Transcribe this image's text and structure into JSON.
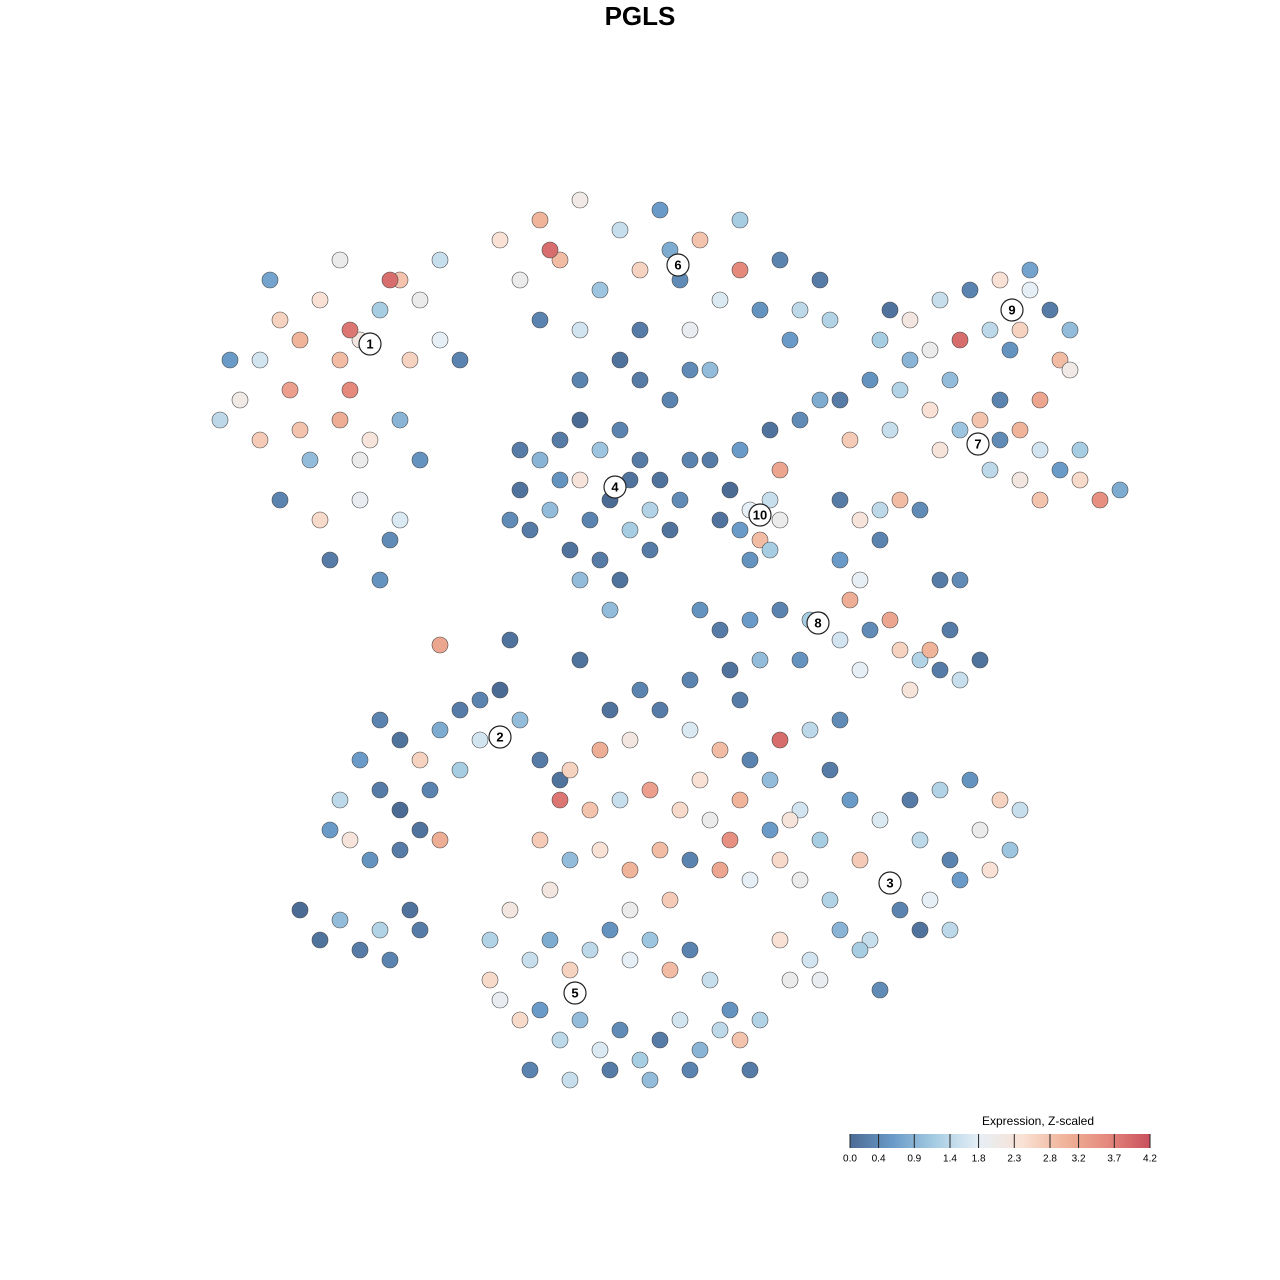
{
  "chart_data": {
    "type": "scatter",
    "title": "PGLS",
    "colorbar_title": "Expression, Z-scaled",
    "clim": [
      0,
      4.2
    ],
    "colorscale": [
      "#4b6b95",
      "#6a9bc8",
      "#a7cde3",
      "#e6eff6",
      "#f9e2d5",
      "#f0b49a",
      "#e5897d",
      "#c9505d"
    ],
    "cticks": [
      {
        "value": 0,
        "label": "0.0"
      },
      0.4,
      0.9,
      1.4,
      1.8,
      2.3,
      2.8,
      3.2,
      3.7,
      4.2
    ],
    "x": [
      -40,
      -38,
      -36,
      -34,
      -32,
      -30,
      -28,
      -26,
      -24,
      -22,
      -20,
      -30,
      -27,
      -33,
      -36,
      -32,
      -28,
      -25,
      -31,
      -26,
      -38,
      -41,
      -35,
      -29,
      -23,
      -20,
      -18,
      -24,
      -42,
      -37,
      -30,
      -34,
      -28,
      -22,
      -24,
      -25,
      -29,
      -14,
      -10,
      -6,
      -2,
      2,
      6,
      10,
      14,
      18,
      -12,
      -8,
      -4,
      0,
      4,
      8,
      12,
      16,
      -10,
      -6,
      0,
      5,
      10,
      -9,
      3,
      15,
      -2,
      7,
      19,
      -12,
      -10,
      -8,
      -6,
      -4,
      -2,
      0,
      2,
      4,
      -11,
      -9,
      -7,
      -5,
      -3,
      -1,
      1,
      3,
      -8,
      -4,
      -6,
      -2,
      5,
      -13,
      -6,
      -1,
      1,
      -12,
      7,
      10,
      13,
      16,
      14,
      9,
      18,
      3,
      0,
      -6,
      5,
      11,
      13,
      14,
      12,
      10,
      13,
      8,
      11,
      24,
      27,
      30,
      33,
      36,
      39,
      41,
      43,
      38,
      35,
      32,
      29,
      42,
      39,
      25,
      37,
      43,
      40,
      20,
      23,
      26,
      29,
      32,
      34,
      36,
      38,
      40,
      42,
      44,
      46,
      48,
      38,
      35,
      30,
      25,
      21,
      27,
      31,
      40,
      44,
      36,
      20,
      22,
      24,
      20,
      22,
      21,
      24,
      18,
      26,
      28,
      30,
      32,
      8,
      11,
      14,
      17,
      20,
      23,
      26,
      28,
      30,
      32,
      34,
      27,
      29,
      22,
      16,
      9,
      5,
      12,
      31,
      25,
      -20,
      -13,
      -3,
      6,
      -6,
      -30,
      -28,
      -26,
      -24,
      -22,
      -20,
      -18,
      -16,
      -14,
      -12,
      -10,
      -8,
      -26,
      -24,
      -22,
      -29,
      -27,
      -24,
      -20,
      -21,
      -18,
      -31,
      -16,
      -34,
      -32,
      -30,
      -28,
      -26,
      -23,
      -25,
      -22,
      -7,
      -4,
      -1,
      2,
      5,
      8,
      11,
      14,
      17,
      20,
      -8,
      -5,
      -2,
      1,
      4,
      7,
      10,
      13,
      16,
      -10,
      -7,
      -4,
      -1,
      2,
      5,
      8,
      11,
      14,
      -9,
      3,
      9,
      6,
      13,
      19,
      -3,
      0,
      10,
      15,
      18,
      21,
      24,
      27,
      30,
      33,
      36,
      38,
      16,
      19,
      22,
      25,
      28,
      31,
      34,
      37,
      14,
      17,
      20,
      23,
      26,
      29,
      32,
      35,
      15,
      18,
      22,
      28,
      24,
      31,
      -15,
      -13,
      -11,
      -9,
      -7,
      -5,
      -3,
      -1,
      1,
      3,
      5,
      7,
      -14,
      -12,
      -10,
      -8,
      -6,
      -4,
      -2,
      0,
      2,
      4,
      6,
      8,
      10,
      12,
      -11,
      -7,
      -3,
      1,
      5,
      9,
      -15,
      -1,
      11
    ],
    "y": [
      24,
      28,
      32,
      30,
      34,
      28,
      30,
      33,
      36,
      34,
      38,
      22,
      20,
      18,
      14,
      12,
      14,
      10,
      8,
      6,
      20,
      28,
      25,
      25,
      28,
      30,
      28,
      22,
      22,
      36,
      38,
      21,
      18,
      18,
      12,
      36,
      31,
      40,
      42,
      44,
      41,
      43,
      40,
      42,
      38,
      36,
      36,
      38,
      35,
      37,
      36,
      34,
      33,
      33,
      32,
      31,
      31,
      31,
      37,
      39,
      39,
      30,
      28,
      27,
      32,
      15,
      18,
      20,
      22,
      19,
      21,
      18,
      16,
      14,
      11,
      13,
      9,
      12,
      14,
      11,
      9,
      11,
      16,
      8,
      6,
      6,
      18,
      12,
      16,
      16,
      13,
      19,
      18,
      19,
      21,
      22,
      17,
      15,
      24,
      24,
      26,
      26,
      27,
      13,
      14,
      12,
      10,
      11,
      9,
      12,
      8,
      30,
      32,
      34,
      35,
      36,
      35,
      33,
      31,
      31,
      31,
      30,
      29,
      28,
      37,
      33,
      29,
      27,
      24,
      24,
      26,
      25,
      23,
      21,
      22,
      20,
      21,
      19,
      17,
      16,
      14,
      15,
      16,
      17,
      19,
      21,
      20,
      28,
      26,
      14,
      19,
      24,
      14,
      12,
      13,
      8,
      6,
      4,
      10,
      2,
      14,
      13,
      6,
      6,
      1,
      2,
      3,
      2,
      0,
      1,
      -1,
      -2,
      -3,
      -4,
      -2,
      -5,
      -1,
      -3,
      -2,
      -3,
      -4,
      -2,
      1,
      2,
      -0.5,
      0,
      3,
      3,
      -2,
      -16,
      -12,
      -8,
      -10,
      -12,
      -9,
      -7,
      -6,
      -5,
      -8,
      -12,
      -14,
      -15,
      -17,
      -19,
      -20,
      -22,
      -21,
      -20,
      -15,
      -13,
      -19,
      -10,
      -27,
      -30,
      -28,
      -31,
      -29,
      -27,
      -32,
      -29,
      -13,
      -11,
      -10,
      -7,
      -9,
      -11,
      -12,
      -10,
      -9,
      -8,
      -16,
      -17,
      -16,
      -15,
      -17,
      -18,
      -16,
      -19,
      -17,
      -20,
      -22,
      -21,
      -23,
      -21,
      -22,
      -23,
      -24,
      -22,
      -25,
      -26,
      -20,
      -14,
      -14,
      -13,
      -7,
      -5,
      -6,
      -18,
      -20,
      -16,
      -18,
      -16,
      -15,
      -14,
      -16,
      -17,
      -24,
      -26,
      -22,
      -24,
      -20,
      -22,
      -19,
      -21,
      -30,
      -32,
      -29,
      -30,
      -27,
      -26,
      -24,
      -23,
      -34,
      -34,
      -31,
      -29,
      -35,
      -29,
      -30,
      -27,
      -32,
      -30,
      -33,
      -31,
      -29,
      -32,
      -30,
      -33,
      -31,
      -34,
      -36,
      -38,
      -37,
      -40,
      -38,
      -41,
      -39,
      -42,
      -40,
      -38,
      -41,
      -39,
      -40,
      -38,
      -43,
      -44,
      -43,
      -44,
      -43,
      -37,
      -34,
      -27,
      -43
    ],
    "values": [
      2.1,
      1.6,
      2.6,
      3.0,
      2.4,
      2.9,
      2.2,
      1.2,
      2.8,
      2.0,
      1.5,
      3.1,
      2.3,
      1.0,
      0.3,
      2.5,
      1.9,
      0.4,
      0.2,
      0.5,
      2.7,
      0.6,
      3.3,
      3.6,
      2.6,
      1.8,
      0.3,
      0.9,
      1.4,
      0.7,
      2.0,
      2.8,
      2.0,
      0.5,
      1.7,
      3.9,
      3.8,
      2.4,
      3.0,
      2.1,
      1.5,
      0.6,
      2.8,
      1.2,
      0.3,
      0.2,
      2.0,
      2.9,
      1.1,
      2.6,
      0.4,
      1.7,
      0.5,
      1.4,
      0.3,
      1.6,
      0.2,
      1.9,
      3.6,
      3.9,
      0.8,
      0.6,
      0.1,
      1.0,
      1.3,
      0.1,
      0.9,
      0.2,
      0.0,
      1.1,
      0.3,
      0.2,
      0.1,
      0.4,
      0.2,
      1.0,
      0.1,
      0.3,
      0.0,
      1.2,
      0.2,
      0.1,
      0.5,
      0.2,
      1.0,
      0.1,
      0.3,
      0.4,
      2.3,
      0.1,
      1.3,
      0.2,
      0.2,
      0.6,
      0.1,
      0.4,
      3.2,
      0.0,
      0.8,
      0.3,
      0.2,
      0.3,
      0.4,
      1.8,
      1.5,
      2.0,
      2.9,
      0.6,
      1.2,
      0.1,
      0.5,
      1.2,
      2.2,
      1.5,
      0.3,
      2.4,
      1.8,
      0.2,
      1.0,
      2.6,
      1.4,
      3.9,
      2.0,
      2.9,
      0.7,
      0.1,
      0.5,
      2.1,
      3.2,
      0.2,
      0.5,
      1.3,
      2.4,
      1.1,
      2.8,
      0.4,
      3.0,
      1.6,
      0.6,
      2.5,
      3.5,
      0.8,
      2.2,
      1.4,
      2.3,
      1.5,
      2.7,
      0.9,
      1.0,
      2.8,
      1.2,
      0.3,
      0.2,
      2.3,
      1.4,
      0.6,
      1.8,
      3.1,
      0.3,
      0.1,
      2.9,
      0.4,
      0.2,
      0.4,
      0.2,
      0.6,
      0.3,
      1.2,
      1.6,
      0.4,
      2.6,
      1.3,
      0.2,
      1.5,
      0.1,
      2.3,
      3.0,
      1.8,
      0.5,
      0.1,
      0.3,
      1.0,
      0.2,
      3.2,
      3.2,
      0.1,
      1.0,
      0.5,
      0.1,
      1.4,
      0.6,
      0.3,
      0.1,
      2.6,
      0.8,
      0.2,
      0.3,
      0.0,
      1.0,
      0.2,
      0.1,
      0.2,
      0.0,
      0.1,
      2.3,
      0.5,
      0.2,
      3.1,
      0.3,
      1.2,
      0.6,
      1.6,
      0.0,
      0.1,
      1.0,
      0.2,
      1.3,
      0.1,
      0.3,
      0.2,
      2.6,
      3.1,
      2.2,
      0.2,
      1.7,
      2.9,
      0.3,
      3.9,
      1.4,
      0.4,
      3.8,
      2.8,
      1.5,
      3.3,
      2.5,
      2.0,
      3.0,
      0.6,
      1.6,
      2.7,
      1.0,
      2.4,
      3.0,
      2.9,
      0.3,
      3.2,
      1.8,
      2.5,
      2.2,
      2.7,
      3.5,
      2.4,
      1.0,
      0.2,
      0.1,
      0.3,
      0.2,
      2.3,
      1.2,
      0.6,
      1.7,
      0.2,
      1.3,
      0.5,
      2.6,
      1.5,
      2.0,
      1.3,
      2.7,
      0.8,
      1.4,
      0.3,
      2.0,
      1.1,
      2.4,
      1.6,
      0.9,
      1.5,
      0.3,
      1.8,
      0.6,
      2.4,
      2.0,
      1.9,
      1.2,
      0.1,
      0.4,
      1.4,
      1.3,
      2.2,
      1.5,
      0.8,
      2.6,
      1.4,
      0.5,
      1.8,
      1.1,
      2.9,
      0.3,
      1.5,
      1.9,
      2.5,
      0.6,
      1.4,
      1.0,
      1.7,
      0.4,
      1.2,
      0.2,
      1.6,
      0.9,
      1.4,
      2.8,
      1.3,
      0.3,
      1.5,
      0.2,
      1.0,
      0.3,
      0.5,
      2.5,
      2.0,
      0.2
    ],
    "cluster_labels": [
      {
        "text": "1",
        "x": -27,
        "y": 29.6
      },
      {
        "text": "2",
        "x": -14,
        "y": -9.7
      },
      {
        "text": "3",
        "x": 25,
        "y": -24.3
      },
      {
        "text": "4",
        "x": -2.5,
        "y": 15.3
      },
      {
        "text": "5",
        "x": -6.5,
        "y": -35.3
      },
      {
        "text": "6",
        "x": 3.8,
        "y": 37.5
      },
      {
        "text": "7",
        "x": 33.8,
        "y": 19.6
      },
      {
        "text": "8",
        "x": 17.8,
        "y": 1.7
      },
      {
        "text": "9",
        "x": 37.2,
        "y": 33
      },
      {
        "text": "10",
        "x": 12,
        "y": 12.5
      }
    ]
  }
}
